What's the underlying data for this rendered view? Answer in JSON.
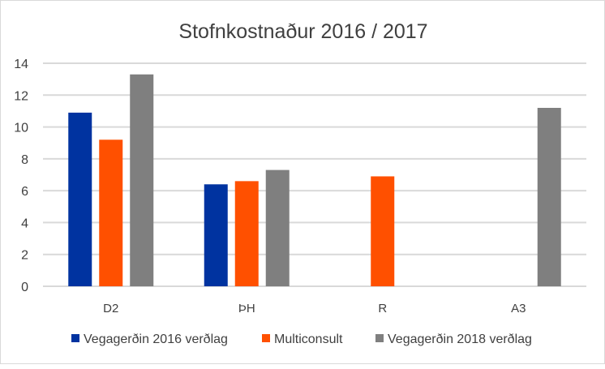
{
  "chart_data": {
    "type": "bar",
    "title": "Stofnkostnaður 2016 / 2017",
    "xlabel": "",
    "ylabel": "",
    "ylim": [
      0,
      14
    ],
    "yticks": [
      "0",
      "2",
      "4",
      "6",
      "8",
      "10",
      "12",
      "14"
    ],
    "grid": true,
    "legend_position": "bottom",
    "categories": [
      "D2",
      "ÞH",
      "R",
      "A3"
    ],
    "series": [
      {
        "name": "Vegagerðin 2016 verðlag",
        "color": "#0033a0",
        "values": [
          10.9,
          6.4,
          null,
          null
        ]
      },
      {
        "name": "Multiconsult",
        "color": "#ff5000",
        "values": [
          9.2,
          6.6,
          6.9,
          null
        ]
      },
      {
        "name": "Vegagerðin 2018 verðlag",
        "color": "#7f7f7f",
        "values": [
          13.3,
          7.3,
          null,
          11.2
        ]
      }
    ]
  }
}
